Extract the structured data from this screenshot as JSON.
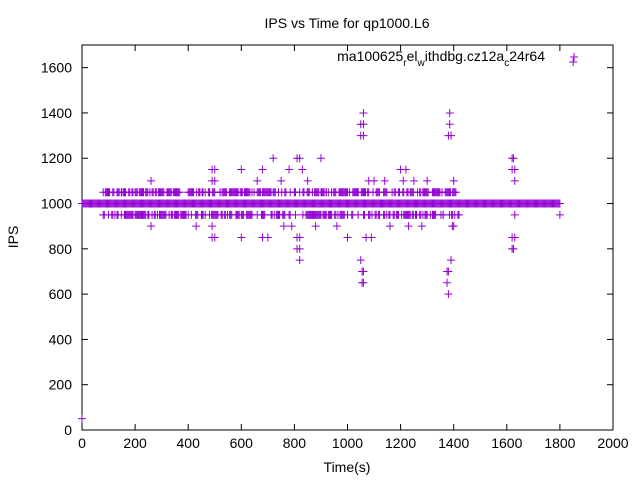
{
  "chart_data": {
    "type": "scatter",
    "title": "IPS vs Time for qp1000.L6",
    "xlabel": "Time(s)",
    "ylabel": "IPS",
    "xlim": [
      0,
      2000
    ],
    "ylim": [
      0,
      1700
    ],
    "xticks": [
      0,
      200,
      400,
      600,
      800,
      1000,
      1200,
      1400,
      1600,
      1800,
      2000
    ],
    "yticks": [
      0,
      200,
      400,
      600,
      800,
      1000,
      1200,
      1400,
      1600
    ],
    "grid": false,
    "legend_position": "top-right",
    "marker": "plus",
    "color": "#9400d3",
    "series": [
      {
        "name_parts": [
          "ma100625",
          "r",
          "el",
          "w",
          "ithdbg.cz12a",
          "c",
          "24r64"
        ],
        "base_band": {
          "x_start": 0,
          "x_end": 1800,
          "step": 4,
          "y": 1000
        },
        "points": [
          [
            0,
            50
          ],
          [
            100,
            1050
          ],
          [
            100,
            950
          ],
          [
            150,
            1050
          ],
          [
            160,
            950
          ],
          [
            160,
            1050
          ],
          [
            200,
            1050
          ],
          [
            210,
            950
          ],
          [
            230,
            1050
          ],
          [
            250,
            950
          ],
          [
            260,
            1100
          ],
          [
            260,
            900
          ],
          [
            280,
            1050
          ],
          [
            300,
            950
          ],
          [
            320,
            1050
          ],
          [
            340,
            950
          ],
          [
            360,
            1050
          ],
          [
            380,
            950
          ],
          [
            400,
            1050
          ],
          [
            430,
            900
          ],
          [
            440,
            1050
          ],
          [
            450,
            950
          ],
          [
            480,
            1050
          ],
          [
            490,
            1100
          ],
          [
            490,
            1150
          ],
          [
            490,
            850
          ],
          [
            490,
            900
          ],
          [
            500,
            1150
          ],
          [
            500,
            1100
          ],
          [
            500,
            850
          ],
          [
            520,
            1050
          ],
          [
            540,
            950
          ],
          [
            560,
            1050
          ],
          [
            580,
            950
          ],
          [
            600,
            1150
          ],
          [
            600,
            850
          ],
          [
            620,
            1050
          ],
          [
            640,
            950
          ],
          [
            660,
            1100
          ],
          [
            660,
            1050
          ],
          [
            680,
            850
          ],
          [
            680,
            1150
          ],
          [
            700,
            1050
          ],
          [
            700,
            850
          ],
          [
            720,
            1200
          ],
          [
            740,
            950
          ],
          [
            750,
            1100
          ],
          [
            760,
            900
          ],
          [
            780,
            1150
          ],
          [
            790,
            900
          ],
          [
            800,
            1050
          ],
          [
            810,
            800
          ],
          [
            810,
            1200
          ],
          [
            810,
            850
          ],
          [
            820,
            750
          ],
          [
            820,
            850
          ],
          [
            820,
            1200
          ],
          [
            820,
            800
          ],
          [
            830,
            1150
          ],
          [
            850,
            1100
          ],
          [
            860,
            950
          ],
          [
            880,
            900
          ],
          [
            900,
            1200
          ],
          [
            920,
            1050
          ],
          [
            940,
            950
          ],
          [
            960,
            900
          ],
          [
            980,
            1050
          ],
          [
            1000,
            850
          ],
          [
            1020,
            950
          ],
          [
            1040,
            1050
          ],
          [
            1050,
            750
          ],
          [
            1050,
            1300
          ],
          [
            1050,
            1350
          ],
          [
            1055,
            700
          ],
          [
            1055,
            650
          ],
          [
            1060,
            1400
          ],
          [
            1060,
            1350
          ],
          [
            1060,
            650
          ],
          [
            1060,
            700
          ],
          [
            1060,
            1300
          ],
          [
            1070,
            850
          ],
          [
            1080,
            1100
          ],
          [
            1080,
            950
          ],
          [
            1090,
            850
          ],
          [
            1100,
            1100
          ],
          [
            1120,
            950
          ],
          [
            1140,
            1100
          ],
          [
            1160,
            900
          ],
          [
            1180,
            1050
          ],
          [
            1200,
            1150
          ],
          [
            1210,
            1100
          ],
          [
            1220,
            1150
          ],
          [
            1230,
            900
          ],
          [
            1250,
            1100
          ],
          [
            1260,
            950
          ],
          [
            1280,
            900
          ],
          [
            1300,
            1100
          ],
          [
            1320,
            950
          ],
          [
            1340,
            1050
          ],
          [
            1360,
            950
          ],
          [
            1375,
            650
          ],
          [
            1375,
            700
          ],
          [
            1380,
            600
          ],
          [
            1380,
            700
          ],
          [
            1380,
            1300
          ],
          [
            1385,
            1350
          ],
          [
            1385,
            1400
          ],
          [
            1390,
            750
          ],
          [
            1390,
            1300
          ],
          [
            1395,
            900
          ],
          [
            1400,
            1100
          ],
          [
            1400,
            900
          ],
          [
            1620,
            1150
          ],
          [
            1620,
            1200
          ],
          [
            1620,
            850
          ],
          [
            1620,
            800
          ],
          [
            1625,
            1200
          ],
          [
            1625,
            800
          ],
          [
            1630,
            1150
          ],
          [
            1630,
            850
          ],
          [
            1630,
            1100
          ],
          [
            1630,
            950
          ],
          [
            1850,
            1625
          ],
          [
            1800,
            950
          ]
        ],
        "dense_flanks": [
          {
            "x_start": 80,
            "x_end": 1420,
            "y": 1050
          },
          {
            "x_start": 80,
            "x_end": 1420,
            "y": 950
          }
        ]
      }
    ]
  }
}
